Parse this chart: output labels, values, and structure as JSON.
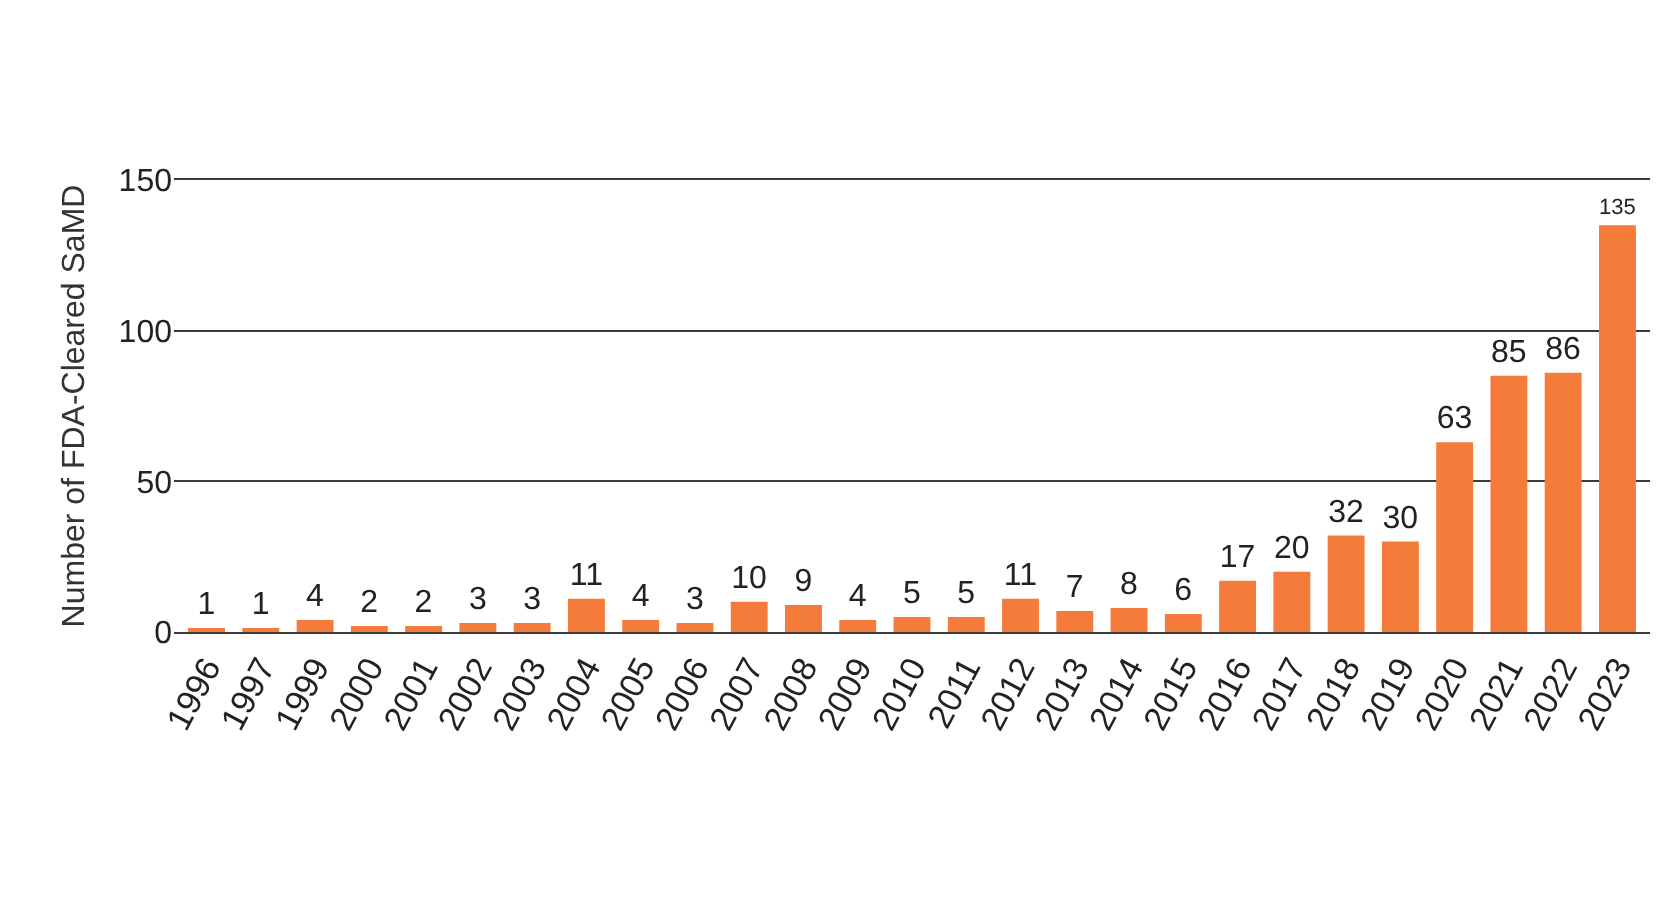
{
  "chart_data": {
    "type": "bar",
    "ylabel": "Number of FDA-Cleared SaMD",
    "categories": [
      "1996",
      "1997",
      "1999",
      "2000",
      "2001",
      "2002",
      "2003",
      "2004",
      "2005",
      "2006",
      "2007",
      "2008",
      "2009",
      "2010",
      "2011",
      "2012",
      "2013",
      "2014",
      "2015",
      "2016",
      "2017",
      "2018",
      "2019",
      "2020",
      "2021",
      "2022",
      "2023"
    ],
    "values": [
      1,
      1,
      4,
      2,
      2,
      3,
      3,
      11,
      4,
      3,
      10,
      9,
      4,
      5,
      5,
      11,
      7,
      8,
      6,
      17,
      20,
      32,
      30,
      63,
      85,
      86,
      135
    ],
    "color": "#f47b3a",
    "ylim": [
      0,
      150
    ],
    "yticks": [
      0,
      50,
      100,
      150
    ],
    "grid": "y",
    "data_labels": true
  }
}
